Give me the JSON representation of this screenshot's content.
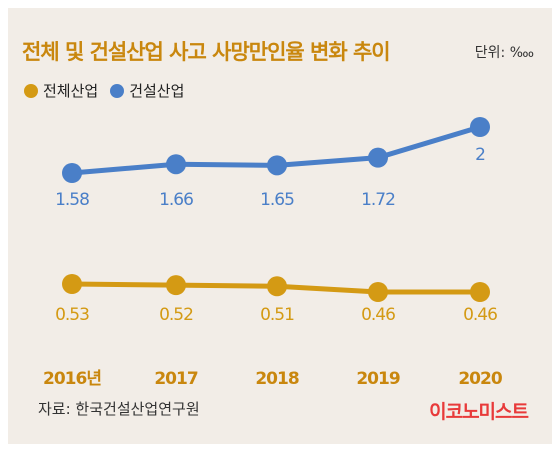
{
  "title": "전체 및 건설산업 사고 사망만인율 변화 추이",
  "unit": "단위: ‱",
  "source": "자료: 한국건설산업연구원",
  "brand": "이코노미스트",
  "colors": {
    "gold": "#d49a14",
    "blue": "#4a7fc8",
    "title": "#c9870e",
    "background": "#f2ede7"
  },
  "chart_data": {
    "type": "line",
    "categories": [
      "2016년",
      "2017",
      "2018",
      "2019",
      "2020"
    ],
    "series": [
      {
        "name": "전체산업",
        "color": "#d49a14",
        "values": [
          0.53,
          0.52,
          0.51,
          0.46,
          0.46
        ],
        "labels": [
          "0.53",
          "0.52",
          "0.51",
          "0.46",
          "0.46"
        ]
      },
      {
        "name": "건설산업",
        "color": "#4a7fc8",
        "values": [
          1.58,
          1.66,
          1.65,
          1.72,
          2
        ],
        "labels": [
          "1.58",
          "1.66",
          "1.65",
          "1.72",
          "2"
        ]
      }
    ],
    "legend": "top-left",
    "grid": false
  }
}
